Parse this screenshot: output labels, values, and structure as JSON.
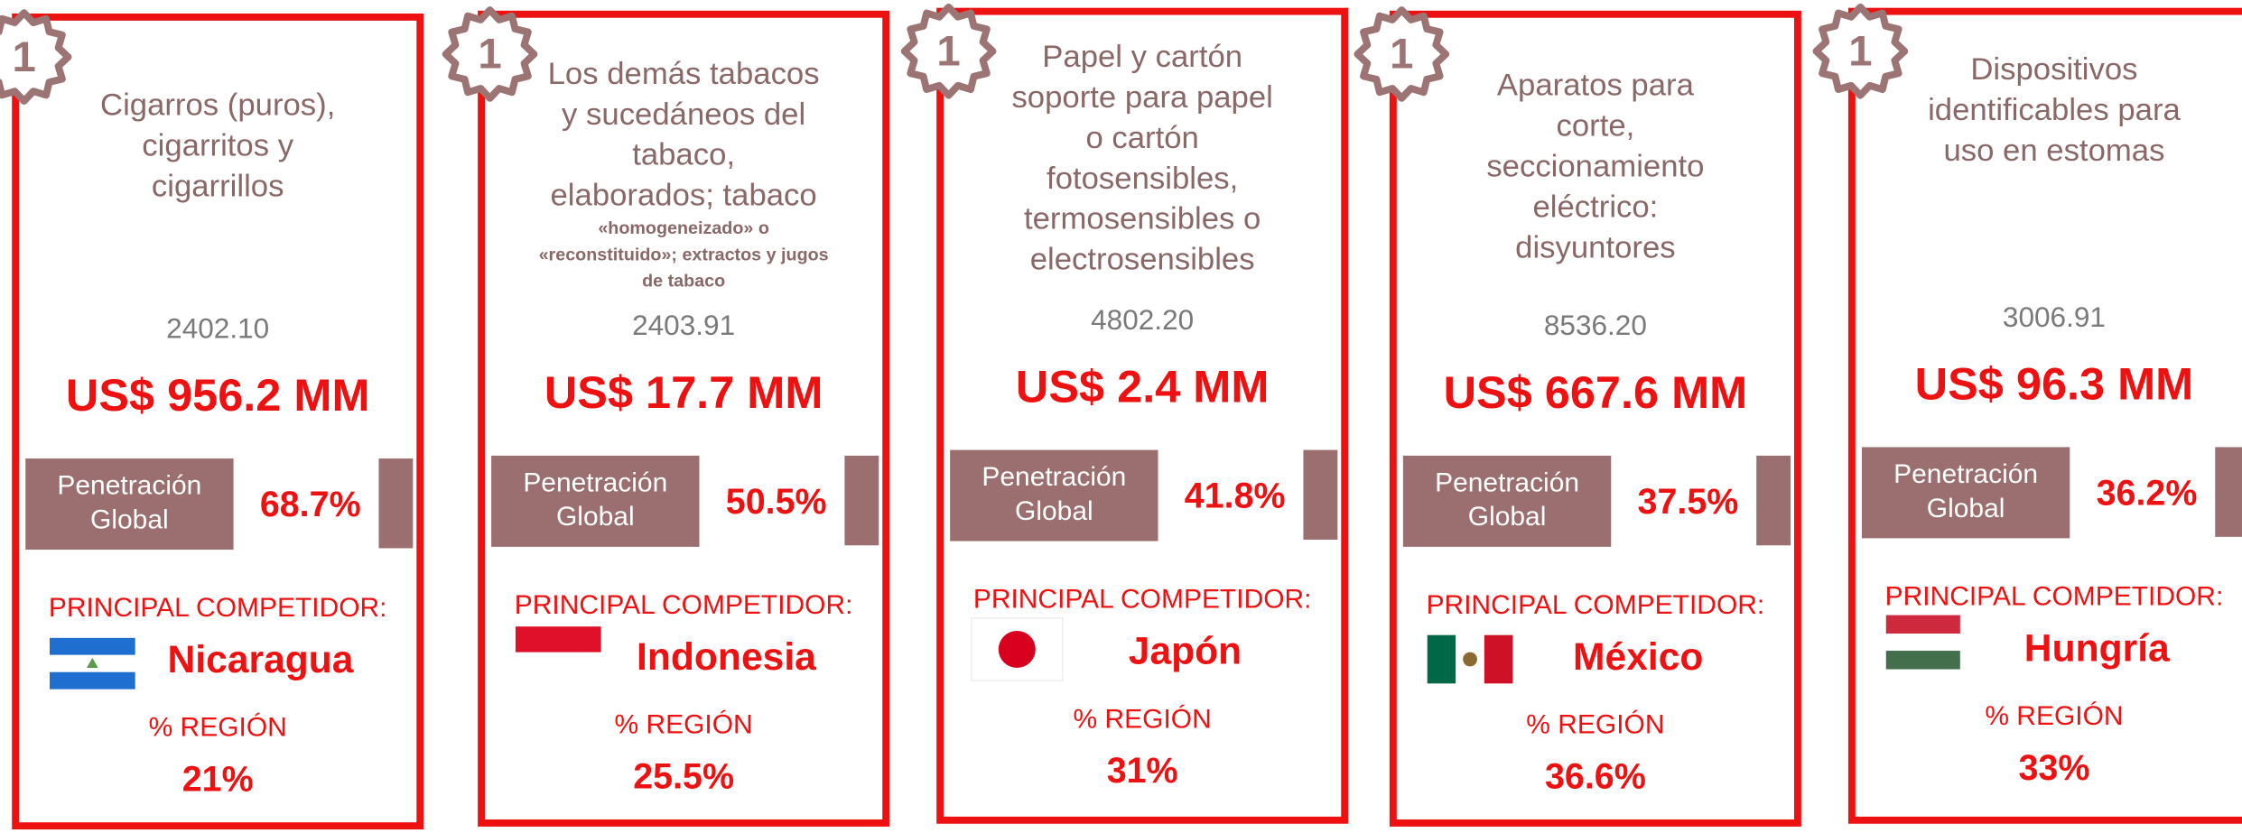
{
  "cards": [
    {
      "rank": "1",
      "title_lines": [
        "Cigarros (puros),",
        "cigarritos y",
        "cigarrillos"
      ],
      "subtitle_lines": [],
      "code": "2402.10",
      "amount": "US$ 956.2 MM",
      "penetration_label_lines": [
        "Penetración",
        "Global"
      ],
      "penetration": "68.7%",
      "competitor_label": "PRINCIPAL COMPETIDOR:",
      "competitor": "Nicaragua",
      "region_label": "% REGIÓN",
      "region": "21%"
    },
    {
      "rank": "1",
      "title_lines": [
        "Los demás tabacos",
        "y sucedáneos del",
        "tabaco,",
        "elaborados; tabaco"
      ],
      "subtitle_lines": [
        "«homogeneizado» o",
        "«reconstituido»; extractos y jugos",
        "de tabaco"
      ],
      "code": "2403.91",
      "amount": "US$ 17.7 MM",
      "penetration_label_lines": [
        "Penetración",
        "Global"
      ],
      "penetration": "50.5%",
      "competitor_label": "PRINCIPAL COMPETIDOR:",
      "competitor": "Indonesia",
      "region_label": "% REGIÓN",
      "region": "25.5%"
    },
    {
      "rank": "1",
      "title_lines": [
        "Papel y cartón",
        "soporte para papel",
        "o cartón",
        "fotosensibles,",
        "termosensibles o",
        "electrosensibles"
      ],
      "subtitle_lines": [],
      "code": "4802.20",
      "amount": "US$ 2.4 MM",
      "penetration_label_lines": [
        "Penetración",
        "Global"
      ],
      "penetration": "41.8%",
      "competitor_label": "PRINCIPAL COMPETIDOR:",
      "competitor": "Japón",
      "region_label": "% REGIÓN",
      "region": "31%"
    },
    {
      "rank": "1",
      "title_lines": [
        "Aparatos para",
        "corte,",
        "seccionamiento",
        "eléctrico:",
        "disyuntores"
      ],
      "subtitle_lines": [],
      "code": "8536.20",
      "amount": "US$ 667.6 MM",
      "penetration_label_lines": [
        "Penetración",
        "Global"
      ],
      "penetration": "37.5%",
      "competitor_label": "PRINCIPAL COMPETIDOR:",
      "competitor": "México",
      "region_label": "% REGIÓN",
      "region": "36.6%"
    },
    {
      "rank": "1",
      "title_lines": [
        "Dispositivos",
        "identificables para",
        "uso en estomas"
      ],
      "subtitle_lines": [],
      "code": "3006.91",
      "amount": "US$ 96.3 MM",
      "penetration_label_lines": [
        "Penetración",
        "Global"
      ],
      "penetration": "36.2%",
      "competitor_label": "PRINCIPAL COMPETIDOR:",
      "competitor": "Hungría",
      "region_label": "% REGIÓN",
      "region": "33%"
    }
  ]
}
